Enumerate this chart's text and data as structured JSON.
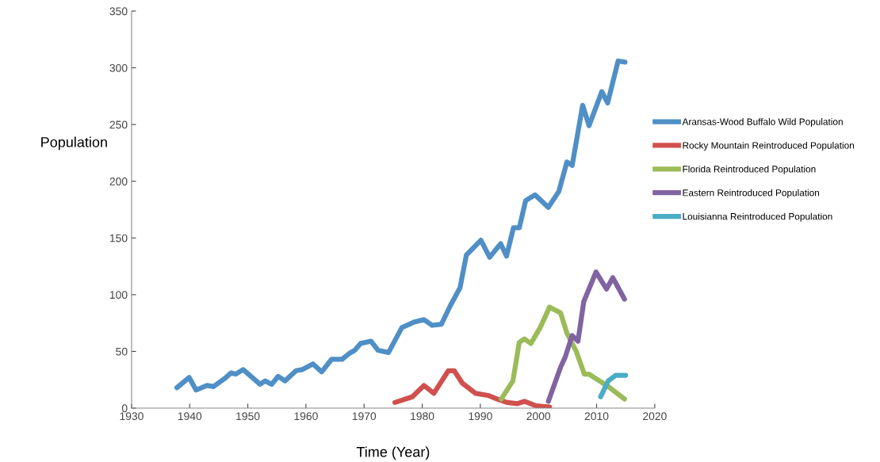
{
  "chart_data": {
    "type": "line",
    "xlabel": "Time (Year)",
    "ylabel": "Population",
    "xlim": [
      1930,
      2020
    ],
    "xticks": [
      1930,
      1940,
      1950,
      1960,
      1970,
      1980,
      1990,
      2000,
      2010,
      2020
    ],
    "ylim": [
      0,
      350
    ],
    "yticks": [
      0,
      50,
      100,
      150,
      200,
      250,
      300,
      350
    ],
    "grid": false,
    "legend": "right",
    "marker": "none",
    "line_style": "solid",
    "series": [
      {
        "name": "Aransas-Wood Buffalo Wild Population",
        "color": "#4f8fc6",
        "x": [
          1937.8,
          1939.9,
          1941.1,
          1943.0,
          1944.1,
          1946.0,
          1947.1,
          1947.9,
          1949.2,
          1952.1,
          1953.0,
          1954.1,
          1955.2,
          1956.4,
          1958.3,
          1959.4,
          1961.2,
          1962.7,
          1964.4,
          1966.2,
          1967.4,
          1968.4,
          1969.4,
          1971.2,
          1972.4,
          1974.2,
          1976.5,
          1978.7,
          1980.3,
          1981.7,
          1983.3,
          1984.9,
          1986.5,
          1987.6,
          1990.1,
          1991.6,
          1993.5,
          1994.5,
          1995.7,
          1996.7,
          1997.8,
          1999.4,
          2001.7,
          2003.5,
          2004.9,
          2005.8,
          2007.6,
          2008.7,
          2010.9,
          2011.9,
          2013.7,
          2014.9
        ],
        "values": [
          18,
          27,
          16,
          20,
          19,
          26,
          31,
          30,
          34,
          21,
          24,
          21,
          28,
          24,
          33,
          34,
          39,
          32,
          43,
          43,
          48,
          51,
          57,
          59,
          51,
          49,
          71,
          76,
          78,
          73,
          74,
          91,
          106,
          135,
          148,
          133,
          145,
          134,
          159,
          159,
          183,
          188,
          177,
          191,
          217,
          214,
          267,
          249,
          279,
          269,
          306,
          305
        ]
      },
      {
        "name": "Rocky Mountain Reintroduced Population",
        "color": "#d0504d",
        "x": [
          1975.3,
          1978.3,
          1980.3,
          1982,
          1984.5,
          1985.5,
          1986.9,
          1989.2,
          1991.5,
          1992.9,
          1994.6,
          1996.4,
          1997.6,
          1999.6,
          2001.9
        ],
        "values": [
          5,
          10,
          20,
          13,
          33,
          33,
          22,
          13,
          11,
          8,
          5,
          4,
          6,
          2,
          1
        ]
      },
      {
        "name": "Florida Reintroduced Population",
        "color": "#9bbb59",
        "x": [
          1993.6,
          1995.6,
          1996.7,
          1997.6,
          1998.7,
          2000.3,
          2001.9,
          2003.8,
          2004.9,
          2006.5,
          2007.9,
          2008.7,
          2012,
          2014.8
        ],
        "values": [
          8,
          24,
          58,
          61,
          57,
          71,
          89,
          84,
          66,
          50,
          30,
          30,
          19,
          8
        ]
      },
      {
        "name": "Eastern Reintroduced Population",
        "color": "#8064a2",
        "x": [
          2001.7,
          2003.8,
          2004.6,
          2005.8,
          2006.8,
          2007.8,
          2009.9,
          2011.7,
          2012.8,
          2014.8
        ],
        "values": [
          6,
          36,
          45,
          64,
          59,
          94,
          120,
          105,
          115,
          96
        ]
      },
      {
        "name": "Louisianna Reintroduced Population",
        "color": "#4bacc6",
        "x": [
          2010.7,
          2012,
          2013.3,
          2015
        ],
        "values": [
          10,
          24,
          29,
          29
        ]
      }
    ]
  }
}
